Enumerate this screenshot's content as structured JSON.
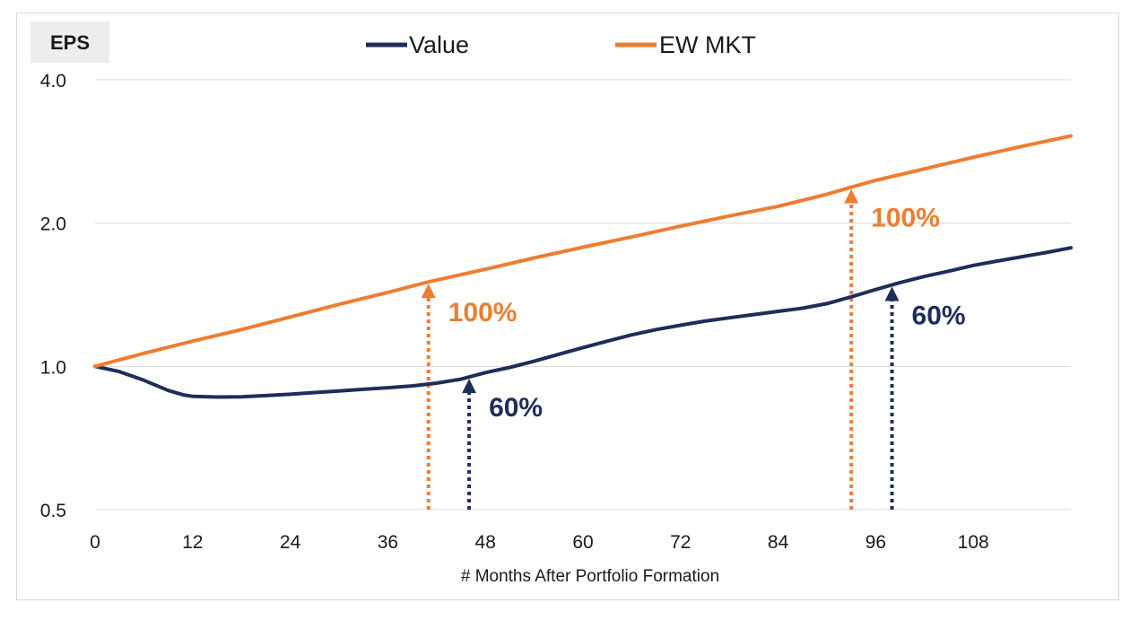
{
  "chart_data": {
    "type": "line",
    "ylabel": "EPS",
    "xlabel": "# Months After Portfolio Formation",
    "y_scale": "log",
    "ylim": [
      0.5,
      4.0
    ],
    "xlim": [
      0,
      120
    ],
    "x_ticks": [
      0,
      12,
      24,
      36,
      48,
      60,
      72,
      84,
      96,
      108
    ],
    "y_ticks": [
      {
        "value": 0.5,
        "label": "0.5"
      },
      {
        "value": 1.0,
        "label": "1.0"
      },
      {
        "value": 2.0,
        "label": "2.0"
      },
      {
        "value": 4.0,
        "label": "4.0"
      }
    ],
    "grid": "horizontal",
    "legend_position": "top",
    "series": [
      {
        "name": "Value",
        "color": "#1f2d5a",
        "points": [
          [
            0,
            1.0
          ],
          [
            3,
            0.975
          ],
          [
            6,
            0.935
          ],
          [
            9,
            0.89
          ],
          [
            11,
            0.87
          ],
          [
            12,
            0.865
          ],
          [
            15,
            0.862
          ],
          [
            18,
            0.863
          ],
          [
            21,
            0.868
          ],
          [
            24,
            0.874
          ],
          [
            27,
            0.881
          ],
          [
            30,
            0.888
          ],
          [
            33,
            0.895
          ],
          [
            36,
            0.902
          ],
          [
            39,
            0.91
          ],
          [
            42,
            0.922
          ],
          [
            45,
            0.94
          ],
          [
            48,
            0.97
          ],
          [
            51,
            0.995
          ],
          [
            54,
            1.025
          ],
          [
            57,
            1.06
          ],
          [
            60,
            1.095
          ],
          [
            63,
            1.13
          ],
          [
            66,
            1.165
          ],
          [
            69,
            1.195
          ],
          [
            72,
            1.22
          ],
          [
            75,
            1.245
          ],
          [
            78,
            1.265
          ],
          [
            81,
            1.285
          ],
          [
            84,
            1.305
          ],
          [
            87,
            1.325
          ],
          [
            90,
            1.355
          ],
          [
            93,
            1.4
          ],
          [
            96,
            1.45
          ],
          [
            99,
            1.5
          ],
          [
            102,
            1.545
          ],
          [
            105,
            1.585
          ],
          [
            108,
            1.63
          ],
          [
            111,
            1.665
          ],
          [
            114,
            1.7
          ],
          [
            117,
            1.735
          ],
          [
            120,
            1.775
          ]
        ]
      },
      {
        "name": "EW MKT",
        "color": "#ed7d31",
        "points": [
          [
            0,
            1.0
          ],
          [
            6,
            1.065
          ],
          [
            12,
            1.13
          ],
          [
            18,
            1.195
          ],
          [
            24,
            1.27
          ],
          [
            30,
            1.35
          ],
          [
            36,
            1.43
          ],
          [
            41,
            1.505
          ],
          [
            48,
            1.6
          ],
          [
            54,
            1.69
          ],
          [
            60,
            1.78
          ],
          [
            66,
            1.87
          ],
          [
            72,
            1.97
          ],
          [
            78,
            2.07
          ],
          [
            84,
            2.17
          ],
          [
            90,
            2.3
          ],
          [
            93,
            2.38
          ],
          [
            96,
            2.46
          ],
          [
            102,
            2.6
          ],
          [
            108,
            2.75
          ],
          [
            114,
            2.9
          ],
          [
            120,
            3.05
          ]
        ]
      }
    ],
    "annotations": [
      {
        "series": "EW MKT",
        "x": 41,
        "text": "100%",
        "color": "#ed7d31"
      },
      {
        "series": "Value",
        "x": 46,
        "text": "60%",
        "color": "#1f2d5a"
      },
      {
        "series": "EW MKT",
        "x": 93,
        "text": "100%",
        "color": "#ed7d31"
      },
      {
        "series": "Value",
        "x": 98,
        "text": "60%",
        "color": "#1f2d5a"
      }
    ]
  }
}
